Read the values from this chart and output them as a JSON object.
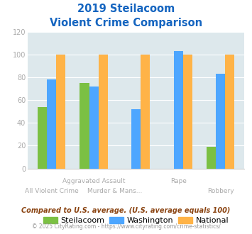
{
  "title_line1": "2019 Steilacoom",
  "title_line2": "Violent Crime Comparison",
  "steilacoom": [
    54,
    75,
    0,
    0,
    19
  ],
  "washington": [
    78,
    72,
    52,
    103,
    83
  ],
  "national": [
    100,
    100,
    100,
    100,
    100
  ],
  "color_steilacoom": "#7bc043",
  "color_washington": "#4da6ff",
  "color_national": "#ffb347",
  "ylim": [
    0,
    120
  ],
  "yticks": [
    0,
    20,
    40,
    60,
    80,
    100,
    120
  ],
  "bg_color": "#dde8ec",
  "label_top_row": [
    "",
    "Aggravated Assault",
    "",
    "Rape",
    ""
  ],
  "label_bot_row": [
    "All Violent Crime",
    "Murder & Mans...",
    "",
    "",
    "Robbery"
  ],
  "footnote1": "Compared to U.S. average. (U.S. average equals 100)",
  "footnote2": "© 2025 CityRating.com - https://www.cityrating.com/crime-statistics/",
  "legend_labels": [
    "Steilacoom",
    "Washington",
    "National"
  ],
  "title_color": "#1565c0",
  "footnote1_color": "#8b4513",
  "footnote2_color": "#999999",
  "xlabel_color": "#aaaaaa",
  "ytick_color": "#aaaaaa"
}
